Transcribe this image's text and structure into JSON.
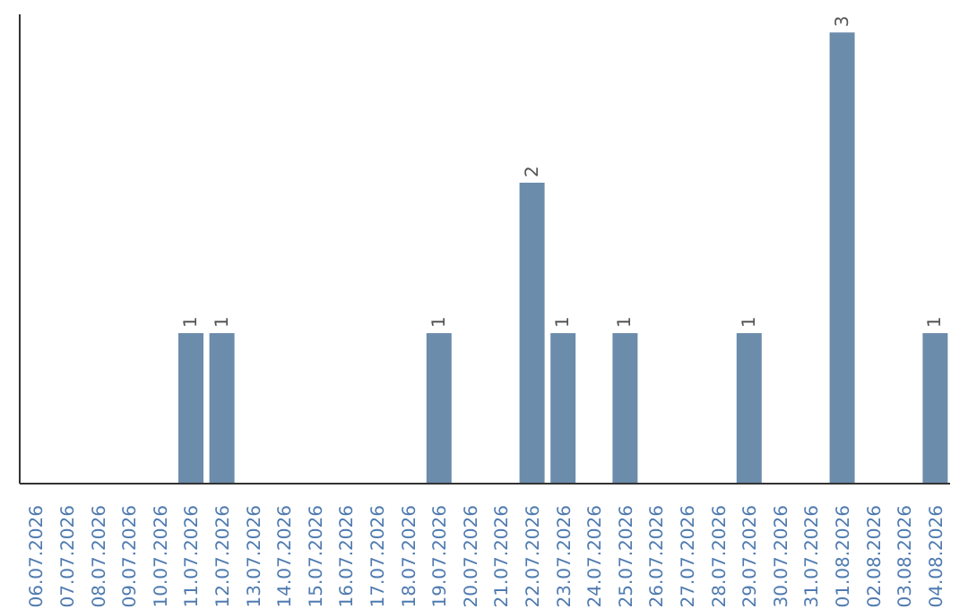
{
  "chart_data": {
    "type": "bar",
    "categories": [
      "06.07.2026",
      "07.07.2026",
      "08.07.2026",
      "09.07.2026",
      "10.07.2026",
      "11.07.2026",
      "12.07.2026",
      "13.07.2026",
      "14.07.2026",
      "15.07.2026",
      "16.07.2026",
      "17.07.2026",
      "18.07.2026",
      "19.07.2026",
      "20.07.2026",
      "21.07.2026",
      "22.07.2026",
      "23.07.2026",
      "24.07.2026",
      "25.07.2026",
      "26.07.2026",
      "27.07.2026",
      "28.07.2026",
      "29.07.2026",
      "30.07.2026",
      "31.07.2026",
      "01.08.2026",
      "02.08.2026",
      "03.08.2026",
      "04.08.2026"
    ],
    "values": [
      0,
      0,
      0,
      0,
      0,
      1,
      1,
      0,
      0,
      0,
      0,
      0,
      0,
      1,
      0,
      0,
      2,
      1,
      0,
      1,
      0,
      0,
      0,
      1,
      0,
      0,
      3,
      0,
      0,
      1
    ],
    "value_labels": [
      null,
      null,
      null,
      null,
      null,
      "1",
      "1",
      null,
      null,
      null,
      null,
      null,
      null,
      "1",
      null,
      null,
      "2",
      "1",
      null,
      "1",
      null,
      null,
      null,
      "1",
      null,
      null,
      "3",
      null,
      null,
      "1"
    ],
    "color": "#6b8cab",
    "grid": false,
    "legend": false
  }
}
